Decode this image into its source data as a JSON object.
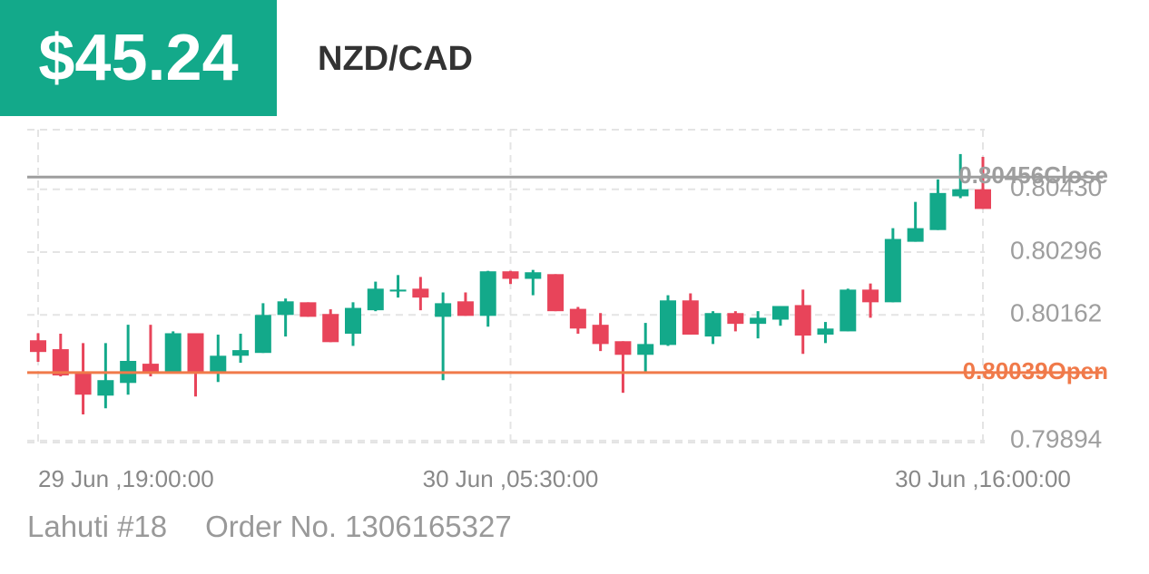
{
  "header": {
    "price": "$45.24",
    "pair": "NZD/CAD"
  },
  "chart_data": {
    "type": "candlestick",
    "x": [
      "29 Jun ,19:00:00",
      null,
      null,
      null,
      null,
      null,
      null,
      null,
      null,
      null,
      null,
      null,
      null,
      null,
      null,
      null,
      null,
      null,
      null,
      null,
      null,
      "30 Jun ,05:30:00",
      null,
      null,
      null,
      null,
      null,
      null,
      null,
      null,
      null,
      null,
      null,
      null,
      null,
      null,
      null,
      null,
      null,
      null,
      null,
      null,
      "30 Jun ,16:00:00"
    ],
    "open": [
      0.80108,
      0.80089,
      0.80037,
      0.7999,
      0.80017,
      0.80058,
      0.80041,
      0.80123,
      0.80041,
      0.80075,
      0.80081,
      0.80162,
      0.80189,
      0.80164,
      0.80122,
      0.80172,
      0.80212,
      0.80218,
      0.80158,
      0.80191,
      0.8016,
      0.80255,
      0.80239,
      0.80249,
      0.80175,
      0.80141,
      0.80106,
      0.80077,
      0.80098,
      0.80193,
      0.80116,
      0.80166,
      0.80143,
      0.80152,
      0.80183,
      0.8012,
      0.80127,
      0.80216,
      0.80189,
      0.80318,
      0.80343,
      0.80415,
      0.8043
    ],
    "high": [
      0.80123,
      0.80122,
      0.80102,
      0.80102,
      0.80141,
      0.80141,
      0.80127,
      0.80123,
      0.8012,
      0.80122,
      0.80187,
      0.80197,
      0.80189,
      0.80174,
      0.80189,
      0.80233,
      0.80247,
      0.80243,
      0.8021,
      0.8021,
      0.80256,
      0.80256,
      0.80258,
      0.80249,
      0.80179,
      0.80166,
      0.80106,
      0.80145,
      0.80204,
      0.80208,
      0.8017,
      0.8017,
      0.8017,
      0.80181,
      0.80216,
      0.80147,
      0.80218,
      0.80229,
      0.80347,
      0.80403,
      0.80451,
      0.80505,
      0.80499
    ],
    "low": [
      0.80062,
      0.80031,
      0.7995,
      0.79963,
      0.79992,
      0.80031,
      0.80039,
      0.79988,
      0.80019,
      0.8006,
      0.80081,
      0.80116,
      0.80158,
      0.80104,
      0.80096,
      0.8017,
      0.80199,
      0.80172,
      0.80023,
      0.8016,
      0.80137,
      0.80228,
      0.80204,
      0.8017,
      0.80122,
      0.80085,
      0.79996,
      0.80039,
      0.80096,
      0.8012,
      0.801,
      0.80127,
      0.80112,
      0.80139,
      0.80079,
      0.80102,
      0.80127,
      0.80156,
      0.80189,
      0.80318,
      0.80343,
      0.80411,
      0.80388
    ],
    "close": [
      0.80083,
      0.80033,
      0.79992,
      0.80023,
      0.80064,
      0.80037,
      0.80123,
      0.80041,
      0.80075,
      0.80087,
      0.80162,
      0.80191,
      0.80158,
      0.80104,
      0.80177,
      0.80218,
      0.80216,
      0.80199,
      0.80187,
      0.8016,
      0.80255,
      0.80239,
      0.80253,
      0.8017,
      0.80133,
      0.801,
      0.80077,
      0.801,
      0.80193,
      0.8012,
      0.80166,
      0.80143,
      0.80156,
      0.80181,
      0.80118,
      0.80133,
      0.80216,
      0.80189,
      0.80324,
      0.80347,
      0.80422,
      0.8043,
      0.80388
    ],
    "up_color": "#13a98a",
    "down_color": "#e8445a",
    "ylim": [
      0.7989,
      0.80557
    ],
    "yticks": [
      0.79894,
      0.80162,
      0.80296,
      {
        "value": 0.8043,
        "label": "0.80430"
      }
    ],
    "grid": true,
    "lines": [
      {
        "name": "Close",
        "value": 0.80456,
        "color": "#9e9e9e"
      },
      {
        "name": "Open",
        "value": 0.80039,
        "color": "#f07a4a"
      }
    ]
  },
  "footer": {
    "account": "Lahuti #18",
    "order": "Order No. 1306165327"
  }
}
